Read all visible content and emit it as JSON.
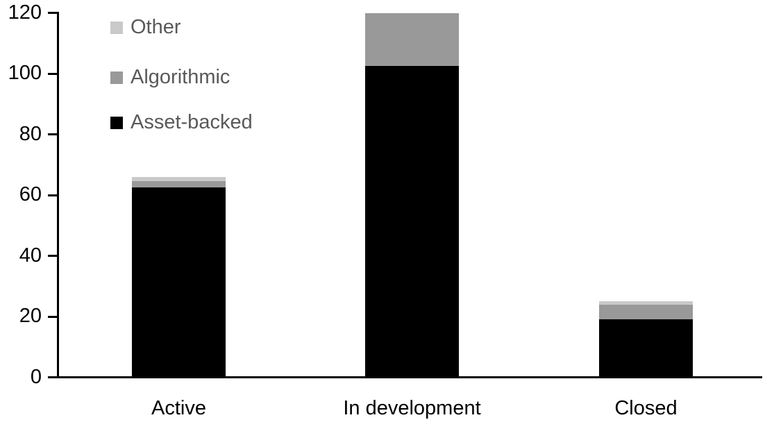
{
  "chart_data": {
    "type": "bar",
    "stacked": true,
    "title": "",
    "categories": [
      "Active",
      "In development",
      "Closed"
    ],
    "series": [
      {
        "name": "Asset-backed",
        "color": "#000000",
        "values": [
          62.5,
          102.5,
          19
        ]
      },
      {
        "name": "Algorithmic",
        "color": "#999999",
        "values": [
          2,
          17.5,
          5
        ]
      },
      {
        "name": "Other",
        "color": "#c9c9c9",
        "values": [
          1.5,
          0,
          1
        ]
      }
    ],
    "totals": [
      66,
      120,
      25
    ],
    "xlabel": "",
    "ylabel": "",
    "ylim": [
      0,
      120
    ],
    "yticks": [
      0,
      20,
      40,
      60,
      80,
      100,
      120
    ],
    "grid": false,
    "legend": {
      "position": "top-left",
      "entries": [
        "Other",
        "Algorithmic",
        "Asset-backed"
      ],
      "text_color": "#595959"
    },
    "colors": {
      "axis": "#000000",
      "tick_label": "#000000",
      "category_label": "#000000",
      "background": "#ffffff"
    }
  }
}
